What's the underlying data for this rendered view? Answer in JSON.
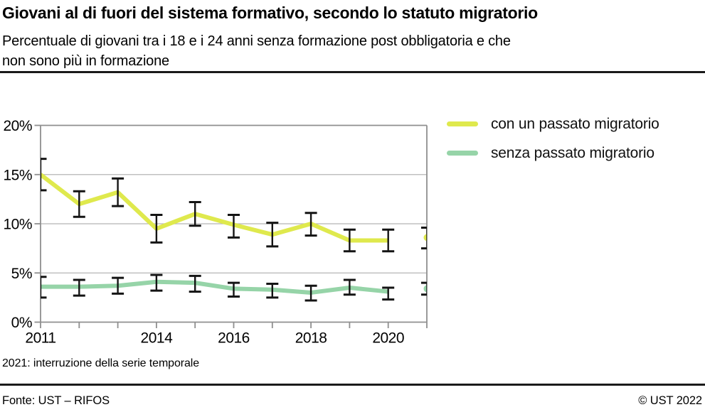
{
  "header": {
    "title": "Giovani al di fuori del sistema formativo, secondo lo statuto migratorio",
    "subtitle_line1": "Percentuale di giovani tra i 18 e i 24 anni senza formazione post obbligatoria e che",
    "subtitle_line2": "non sono più in formazione"
  },
  "chart_data": {
    "type": "line",
    "x": [
      2011,
      2012,
      2013,
      2014,
      2015,
      2016,
      2017,
      2018,
      2019,
      2020,
      2021
    ],
    "series": [
      {
        "name": "con un passato migratorio",
        "color": "#dfe94d",
        "values": [
          15.0,
          12.0,
          13.2,
          9.5,
          11.0,
          9.9,
          8.9,
          10.0,
          8.3,
          8.3,
          8.6
        ],
        "ci_low": [
          13.4,
          10.7,
          11.8,
          8.1,
          9.8,
          8.6,
          7.7,
          8.8,
          7.2,
          7.2,
          7.5
        ],
        "ci_high": [
          16.6,
          13.3,
          14.6,
          10.9,
          12.2,
          10.9,
          10.1,
          11.1,
          9.4,
          9.4,
          9.6
        ]
      },
      {
        "name": "senza passato migratorio",
        "color": "#96d4a8",
        "values": [
          3.6,
          3.6,
          3.7,
          4.1,
          4.0,
          3.4,
          3.3,
          3.0,
          3.5,
          3.1,
          3.4
        ],
        "ci_low": [
          2.5,
          2.7,
          2.9,
          3.2,
          3.1,
          2.6,
          2.5,
          2.2,
          2.8,
          2.3,
          2.8
        ],
        "ci_high": [
          4.6,
          4.3,
          4.5,
          4.8,
          4.7,
          4.0,
          3.9,
          3.7,
          4.3,
          3.5,
          4.0
        ]
      }
    ],
    "break_after_x": 2020,
    "error_bars": true,
    "ylim": [
      0,
      20
    ],
    "yticks": [
      0,
      5,
      10,
      15,
      20
    ],
    "ytick_suffix": "%",
    "xtick_labels": [
      2011,
      2014,
      2016,
      2018,
      2020
    ],
    "grid": true,
    "legend_position": "top-right",
    "annotation": "2021: interruzione della serie temporale",
    "colors": {
      "grid": "#b4b4b4",
      "frame": "#8f8f8f",
      "error_bar": "#141414",
      "tick_label": "#000000"
    }
  },
  "footnote": "2021: interruzione della serie temporale",
  "footer": {
    "source": "Fonte: UST – RIFOS",
    "copyright": "© UST 2022"
  }
}
